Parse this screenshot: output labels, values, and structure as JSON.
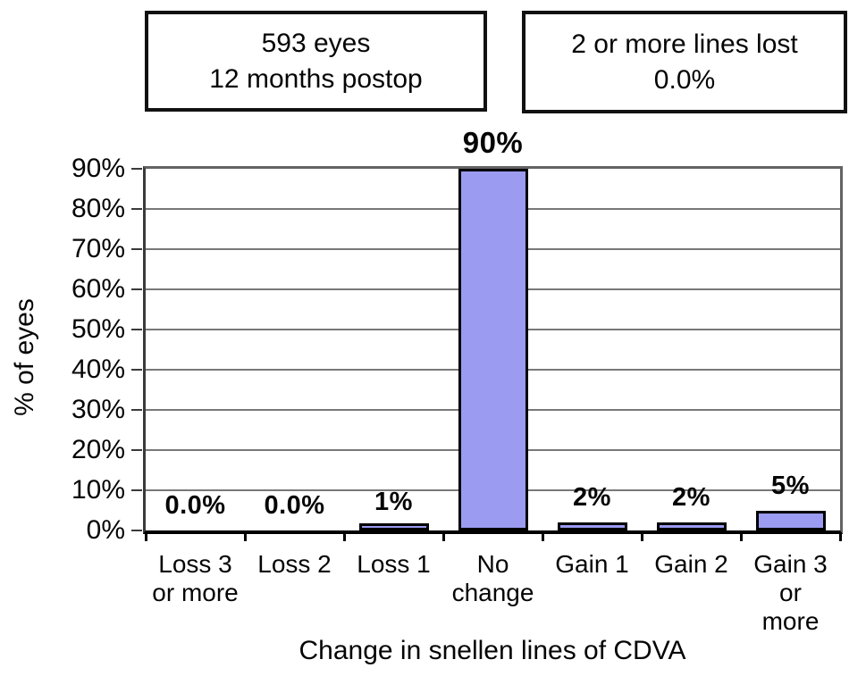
{
  "annotations": {
    "eyes_box": {
      "line1": "593 eyes",
      "line2": "12 months postop"
    },
    "lines_lost_box": {
      "line1": "2 or more lines lost",
      "line2": "0.0%"
    }
  },
  "chart_data": {
    "type": "bar",
    "categories": [
      "Loss 3\nor more",
      "Loss 2",
      "Loss 1",
      "No\nchange",
      "Gain 1",
      "Gain 2",
      "Gain 3\nor more"
    ],
    "values": [
      0.0,
      0.0,
      1,
      90,
      2,
      2,
      5
    ],
    "value_labels": [
      "0.0%",
      "0.0%",
      "1%",
      "90%",
      "2%",
      "2%",
      "5%"
    ],
    "title": "",
    "xlabel": "Change in snellen lines of CDVA",
    "ylabel": "% of eyes",
    "ylim": [
      0,
      90
    ],
    "ytick_step": 10,
    "ytick_labels": [
      "0%",
      "10%",
      "20%",
      "30%",
      "40%",
      "50%",
      "60%",
      "70%",
      "80%",
      "90%"
    ],
    "grid": true,
    "legend": "none",
    "bar_color": "#9b9bf1",
    "bar_border_color": "#000000",
    "gridline_color": "#787878"
  }
}
